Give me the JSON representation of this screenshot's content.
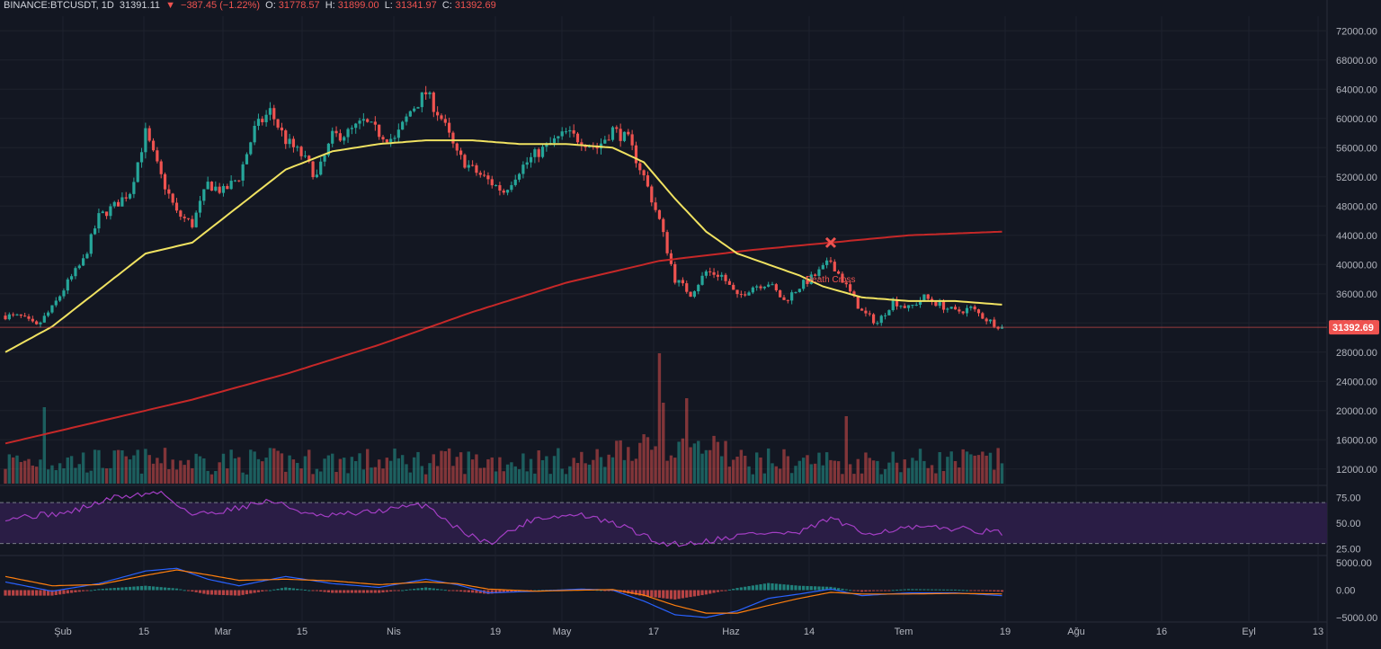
{
  "header": {
    "symbol": "BINANCE:BTCUSDT, 1D",
    "last": "31391.11",
    "change": "−387.45 (−1.22%)",
    "o_label": "O:",
    "o_value": "31778.57",
    "h_label": "H:",
    "h_value": "31899.00",
    "l_label": "L:",
    "l_value": "31341.97",
    "c_label": "C:",
    "c_value": "31392.69"
  },
  "colors": {
    "background": "#131722",
    "up": "#26a69a",
    "down": "#ef5350",
    "ma_fast": "#f0e261",
    "ma_slow": "#c62828",
    "rsi": "#a33ec4",
    "rsi_band": "#2a1d45",
    "macd": "#2962ff",
    "signal": "#ff7f0e",
    "grid": "#1e222d"
  },
  "annotation": {
    "label": "Death Cross"
  },
  "current_price_label": "31392.69",
  "chart_data": [
    {
      "type": "candlestick",
      "title": "BINANCE:BTCUSDT, 1D",
      "price_axis_ticks": [
        "72000.00",
        "68000.00",
        "64000.00",
        "60000.00",
        "56000.00",
        "52000.00",
        "48000.00",
        "44000.00",
        "40000.00",
        "36000.00",
        "32000.00",
        "28000.00",
        "24000.00",
        "20000.00",
        "16000.00",
        "12000.00"
      ],
      "ylim": [
        10000,
        74000
      ],
      "x_tick_labels": [
        "Şub",
        "15",
        "Mar",
        "15",
        "Nis",
        "19",
        "May",
        "17",
        "Haz",
        "14",
        "Tem",
        "19",
        "Ağu",
        "16",
        "Eyl",
        "13"
      ],
      "close_path": [
        [
          0,
          33000
        ],
        [
          4,
          32800
        ],
        [
          8,
          31500
        ],
        [
          12,
          34000
        ],
        [
          16,
          37500
        ],
        [
          20,
          40500
        ],
        [
          24,
          46500
        ],
        [
          28,
          48000
        ],
        [
          32,
          50000
        ],
        [
          36,
          58000
        ],
        [
          40,
          52000
        ],
        [
          44,
          47000
        ],
        [
          48,
          45500
        ],
        [
          52,
          51000
        ],
        [
          56,
          50000
        ],
        [
          60,
          52000
        ],
        [
          64,
          58500
        ],
        [
          68,
          61000
        ],
        [
          72,
          57000
        ],
        [
          76,
          55000
        ],
        [
          80,
          52000
        ],
        [
          84,
          57500
        ],
        [
          88,
          58000
        ],
        [
          92,
          59500
        ],
        [
          96,
          58000
        ],
        [
          100,
          57000
        ],
        [
          104,
          61000
        ],
        [
          108,
          63500
        ],
        [
          112,
          60000
        ],
        [
          116,
          55000
        ],
        [
          120,
          53000
        ],
        [
          124,
          51500
        ],
        [
          128,
          50000
        ],
        [
          132,
          53000
        ],
        [
          136,
          55000
        ],
        [
          140,
          56500
        ],
        [
          144,
          58000
        ],
        [
          148,
          57000
        ],
        [
          152,
          56000
        ],
        [
          156,
          58500
        ],
        [
          160,
          57000
        ],
        [
          164,
          52000
        ],
        [
          168,
          46000
        ],
        [
          172,
          38000
        ],
        [
          176,
          36000
        ],
        [
          180,
          39000
        ],
        [
          184,
          38500
        ],
        [
          188,
          35500
        ],
        [
          192,
          37000
        ],
        [
          196,
          37500
        ],
        [
          200,
          35000
        ],
        [
          204,
          37000
        ],
        [
          208,
          38500
        ],
        [
          212,
          40500
        ],
        [
          216,
          37000
        ],
        [
          220,
          33500
        ],
        [
          224,
          32000
        ],
        [
          228,
          35000
        ],
        [
          232,
          34000
        ],
        [
          236,
          35500
        ],
        [
          240,
          34500
        ],
        [
          244,
          33500
        ],
        [
          248,
          34000
        ],
        [
          252,
          32500
        ],
        [
          256,
          31392
        ]
      ],
      "sma_fast": [
        [
          0,
          28000
        ],
        [
          12,
          31500
        ],
        [
          24,
          36500
        ],
        [
          36,
          41500
        ],
        [
          48,
          43000
        ],
        [
          60,
          48000
        ],
        [
          72,
          53000
        ],
        [
          84,
          55500
        ],
        [
          96,
          56500
        ],
        [
          108,
          57000
        ],
        [
          120,
          57000
        ],
        [
          132,
          56500
        ],
        [
          144,
          56500
        ],
        [
          156,
          56000
        ],
        [
          164,
          54000
        ],
        [
          172,
          49000
        ],
        [
          180,
          44500
        ],
        [
          188,
          41500
        ],
        [
          196,
          40000
        ],
        [
          204,
          38500
        ],
        [
          210,
          37000
        ],
        [
          220,
          35500
        ],
        [
          232,
          35000
        ],
        [
          244,
          35000
        ],
        [
          256,
          34500
        ]
      ],
      "sma_slow": [
        [
          0,
          15500
        ],
        [
          24,
          18500
        ],
        [
          48,
          21500
        ],
        [
          72,
          25000
        ],
        [
          96,
          29000
        ],
        [
          120,
          33500
        ],
        [
          144,
          37500
        ],
        [
          168,
          40500
        ],
        [
          192,
          42000
        ],
        [
          212,
          43000
        ],
        [
          232,
          44000
        ],
        [
          256,
          44500
        ]
      ],
      "cross_marker_index": 212
    },
    {
      "type": "bar",
      "title": "Volume",
      "note": "volume histogram below price"
    },
    {
      "type": "line",
      "title": "RSI",
      "ylim": [
        20,
        85
      ],
      "ticks": [
        "75.00",
        "50.00",
        "25.00"
      ],
      "bands": [
        70,
        30
      ],
      "values_path": [
        [
          0,
          55
        ],
        [
          16,
          60
        ],
        [
          28,
          75
        ],
        [
          40,
          80
        ],
        [
          48,
          58
        ],
        [
          56,
          62
        ],
        [
          68,
          72
        ],
        [
          80,
          56
        ],
        [
          92,
          60
        ],
        [
          108,
          68
        ],
        [
          116,
          45
        ],
        [
          124,
          30
        ],
        [
          136,
          55
        ],
        [
          148,
          58
        ],
        [
          160,
          45
        ],
        [
          168,
          30
        ],
        [
          176,
          30
        ],
        [
          192,
          40
        ],
        [
          204,
          40
        ],
        [
          212,
          55
        ],
        [
          220,
          40
        ],
        [
          232,
          45
        ],
        [
          244,
          45
        ],
        [
          256,
          40
        ]
      ]
    },
    {
      "type": "line",
      "title": "MACD",
      "ylim": [
        -5500,
        6000
      ],
      "ticks": [
        "5000.00",
        "0.00",
        "−5000.00"
      ],
      "macd_path": [
        [
          0,
          1500
        ],
        [
          12,
          -200
        ],
        [
          24,
          1200
        ],
        [
          36,
          3500
        ],
        [
          44,
          4000
        ],
        [
          52,
          2000
        ],
        [
          60,
          800
        ],
        [
          72,
          2500
        ],
        [
          84,
          1200
        ],
        [
          96,
          500
        ],
        [
          108,
          2000
        ],
        [
          116,
          1000
        ],
        [
          124,
          -500
        ],
        [
          136,
          -200
        ],
        [
          148,
          200
        ],
        [
          156,
          0
        ],
        [
          164,
          -2000
        ],
        [
          172,
          -4500
        ],
        [
          180,
          -5000
        ],
        [
          188,
          -3800
        ],
        [
          196,
          -1500
        ],
        [
          204,
          -700
        ],
        [
          212,
          200
        ],
        [
          220,
          -1000
        ],
        [
          232,
          -500
        ],
        [
          244,
          -500
        ],
        [
          256,
          -1000
        ]
      ],
      "signal_path": [
        [
          0,
          2500
        ],
        [
          12,
          800
        ],
        [
          24,
          1000
        ],
        [
          36,
          2700
        ],
        [
          44,
          3700
        ],
        [
          52,
          2800
        ],
        [
          60,
          1800
        ],
        [
          72,
          2000
        ],
        [
          84,
          1700
        ],
        [
          96,
          1000
        ],
        [
          108,
          1500
        ],
        [
          116,
          1200
        ],
        [
          124,
          200
        ],
        [
          136,
          -200
        ],
        [
          148,
          0
        ],
        [
          156,
          100
        ],
        [
          164,
          -900
        ],
        [
          172,
          -2800
        ],
        [
          180,
          -4200
        ],
        [
          188,
          -4200
        ],
        [
          196,
          -2800
        ],
        [
          204,
          -1500
        ],
        [
          212,
          -400
        ],
        [
          220,
          -700
        ],
        [
          232,
          -700
        ],
        [
          244,
          -600
        ],
        [
          256,
          -700
        ]
      ]
    }
  ]
}
